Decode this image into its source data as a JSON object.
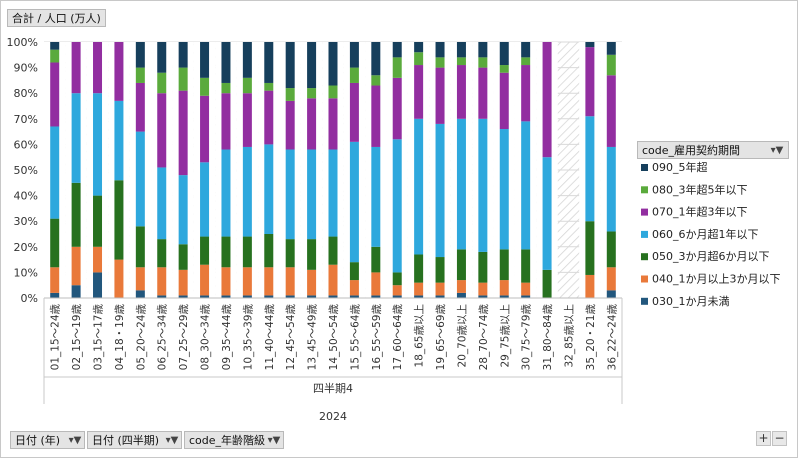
{
  "field_buttons": {
    "values": "合計 / 人口 (万人)",
    "legend_field": "code_雇用契約期間",
    "filters": [
      "日付 (年)",
      "日付 (四半期)",
      "code_年齢階級"
    ]
  },
  "zoom": {
    "plus": "+",
    "minus": "−"
  },
  "chart_data": {
    "type": "bar",
    "stacked": "percent",
    "ylabel": "",
    "yticks": [
      "0%",
      "10%",
      "20%",
      "30%",
      "40%",
      "50%",
      "60%",
      "70%",
      "80%",
      "90%",
      "100%"
    ],
    "ylim": [
      0,
      100
    ],
    "grid": true,
    "x_group_levels": [
      "四半期4",
      "2024"
    ],
    "categories": [
      "01_15～24歳",
      "02_15～19歳",
      "03_15～17歳",
      "04_18・19歳",
      "05_20～24歳",
      "06_25～34歳",
      "07_25～29歳",
      "08_30～34歳",
      "09_35～44歳",
      "10_35～39歳",
      "11_40～44歳",
      "12_45～54歳",
      "13_45～49歳",
      "14_50～54歳",
      "15_55～64歳",
      "16_55～59歳",
      "17_60～64歳",
      "18_65歳以上",
      "19_65～69歳",
      "20_70歳以上",
      "28_70～74歳",
      "29_75歳以上",
      "30_75～79歳",
      "31_80～84歳",
      "32_85歳以上",
      "35_20・21歳",
      "36_22～24歳"
    ],
    "hatched_categories": [
      "32_85歳以上"
    ],
    "series": [
      {
        "name": "030_1か月未満",
        "color": "#22577d",
        "values": [
          2,
          5,
          10,
          0,
          3,
          1,
          1,
          1,
          1,
          1,
          1,
          1,
          1,
          1,
          1,
          1,
          1,
          1,
          1,
          2,
          1,
          1,
          1,
          0,
          0,
          0,
          3
        ]
      },
      {
        "name": "040_1か月以上3か月以下",
        "color": "#e9793a",
        "values": [
          10,
          15,
          10,
          15,
          9,
          11,
          10,
          12,
          11,
          11,
          11,
          11,
          10,
          12,
          6,
          9,
          4,
          5,
          5,
          5,
          5,
          6,
          5,
          0,
          0,
          9,
          9
        ]
      },
      {
        "name": "050_3か月超6か月以下",
        "color": "#27711f",
        "values": [
          19,
          25,
          20,
          31,
          16,
          11,
          10,
          11,
          12,
          12,
          13,
          11,
          12,
          11,
          7,
          10,
          5,
          11,
          10,
          12,
          12,
          12,
          13,
          11,
          0,
          21,
          14
        ]
      },
      {
        "name": "060_6か月超1年以下",
        "color": "#2ea8dd",
        "values": [
          36,
          35,
          40,
          31,
          37,
          28,
          27,
          29,
          34,
          35,
          35,
          35,
          35,
          34,
          47,
          39,
          52,
          53,
          52,
          51,
          52,
          47,
          50,
          44,
          0,
          41,
          33
        ]
      },
      {
        "name": "070_1年超3年以下",
        "color": "#922ea0",
        "values": [
          25,
          20,
          20,
          23,
          19,
          29,
          33,
          26,
          22,
          21,
          21,
          19,
          20,
          20,
          23,
          24,
          24,
          21,
          22,
          21,
          20,
          22,
          22,
          45,
          0,
          27,
          28
        ]
      },
      {
        "name": "080_3年超5年以下",
        "color": "#5aaa3c",
        "values": [
          5,
          0,
          0,
          0,
          6,
          8,
          9,
          7,
          4,
          6,
          3,
          5,
          4,
          5,
          6,
          4,
          8,
          5,
          4,
          3,
          4,
          3,
          3,
          0,
          0,
          0,
          8
        ]
      },
      {
        "name": "090_5年超",
        "color": "#163f5c",
        "values": [
          3,
          0,
          0,
          0,
          10,
          12,
          10,
          14,
          16,
          14,
          16,
          18,
          18,
          17,
          10,
          13,
          6,
          4,
          6,
          6,
          6,
          9,
          6,
          0,
          0,
          2,
          5
        ]
      }
    ]
  }
}
